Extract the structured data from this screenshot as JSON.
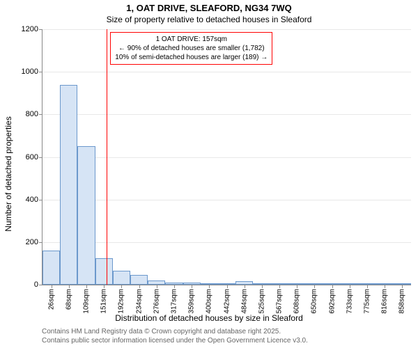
{
  "chart": {
    "type": "histogram",
    "title_main": "1, OAT DRIVE, SLEAFORD, NG34 7WQ",
    "title_sub": "Size of property relative to detached houses in Sleaford",
    "title_fontsize": 13,
    "subtitle_fontsize": 12,
    "background_color": "#ffffff",
    "grid_color": "#e8e8e8",
    "axis_color": "#888888",
    "text_color": "#000000",
    "y": {
      "label": "Number of detached properties",
      "label_fontsize": 12,
      "min": 0,
      "max": 1200,
      "tick_step": 200,
      "ticks": [
        0,
        200,
        400,
        600,
        800,
        1000,
        1200
      ]
    },
    "x": {
      "label": "Distribution of detached houses by size in Sleaford",
      "label_fontsize": 12,
      "tick_labels": [
        "26sqm",
        "68sqm",
        "109sqm",
        "151sqm",
        "192sqm",
        "234sqm",
        "276sqm",
        "317sqm",
        "359sqm",
        "400sqm",
        "442sqm",
        "484sqm",
        "525sqm",
        "567sqm",
        "608sqm",
        "650sqm",
        "692sqm",
        "733sqm",
        "775sqm",
        "816sqm",
        "858sqm"
      ],
      "tick_label_fontsize": 10
    },
    "bars": {
      "values": [
        160,
        940,
        650,
        125,
        65,
        45,
        20,
        10,
        10,
        5,
        3,
        18,
        2,
        1,
        1,
        0,
        1,
        0,
        0,
        0,
        0
      ],
      "fill_color": "#d6e4f5",
      "border_color": "#6b98cc",
      "border_width": 1,
      "bar_width": 1.0
    },
    "marker": {
      "value_sqm": 157,
      "line_color": "#ff0000",
      "line_width": 1
    },
    "info_box": {
      "line1": "1 OAT DRIVE: 157sqm",
      "line2": "← 90% of detached houses are smaller (1,782)",
      "line3": "10% of semi-detached houses are larger (189) →",
      "border_color": "#ff0000",
      "border_width": 1,
      "fontsize": 10
    },
    "footer": {
      "line1": "Contains HM Land Registry data © Crown copyright and database right 2025.",
      "line2": "Contains public sector information licensed under the Open Government Licence v3.0.",
      "fontsize": 10,
      "color": "#666666"
    }
  }
}
